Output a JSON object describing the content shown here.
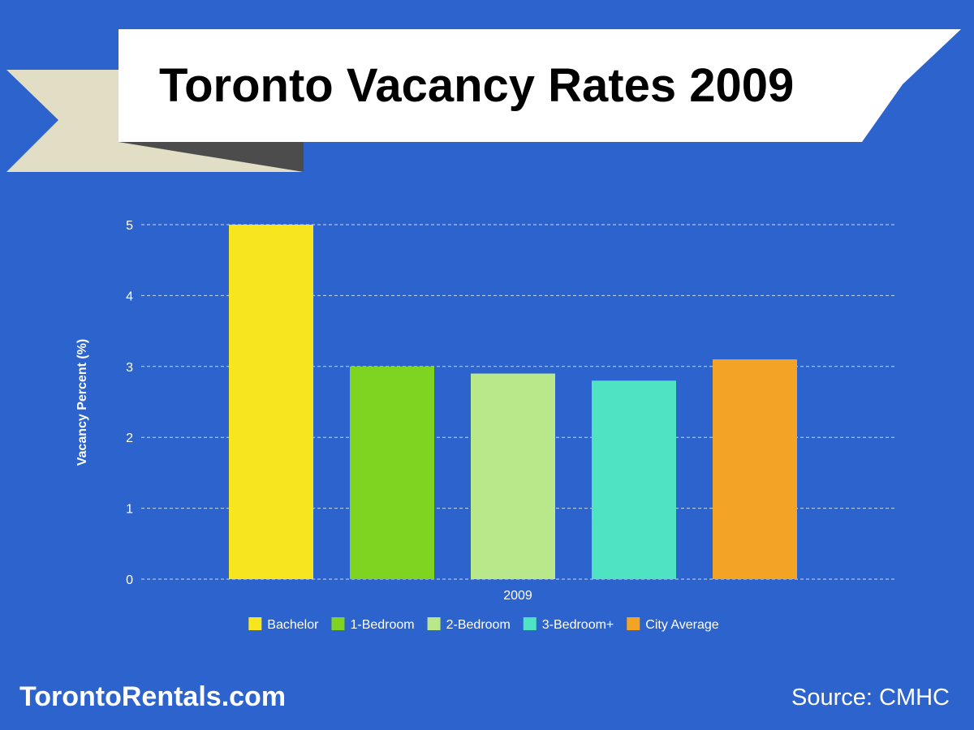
{
  "page": {
    "title": "Toronto Vacancy Rates 2009",
    "brand": "TorontoRentals.com",
    "source": "Source: CMHC",
    "background_color": "#2d63cc",
    "ribbon_colors": {
      "banner": "#ffffff",
      "tail": "#e2ddc5",
      "fold": "#4c4c4c"
    }
  },
  "chart_data": {
    "type": "bar",
    "title": "",
    "xlabel": "",
    "ylabel": "Vacancy Percent (%)",
    "categories": [
      "2009"
    ],
    "ylim": [
      0,
      5
    ],
    "yticks": [
      "0",
      "1",
      "2",
      "3",
      "4",
      "5"
    ],
    "grid": true,
    "legend_position": "bottom",
    "series": [
      {
        "name": "Bachelor",
        "values": [
          5.0
        ],
        "color": "#f7e51f"
      },
      {
        "name": "1-Bedroom",
        "values": [
          3.0
        ],
        "color": "#7fd321"
      },
      {
        "name": "2-Bedroom",
        "values": [
          2.9
        ],
        "color": "#b9e88b"
      },
      {
        "name": "3-Bedroom+",
        "values": [
          2.8
        ],
        "color": "#4fe2c3"
      },
      {
        "name": "City Average",
        "values": [
          3.1
        ],
        "color": "#f4a425"
      }
    ]
  }
}
